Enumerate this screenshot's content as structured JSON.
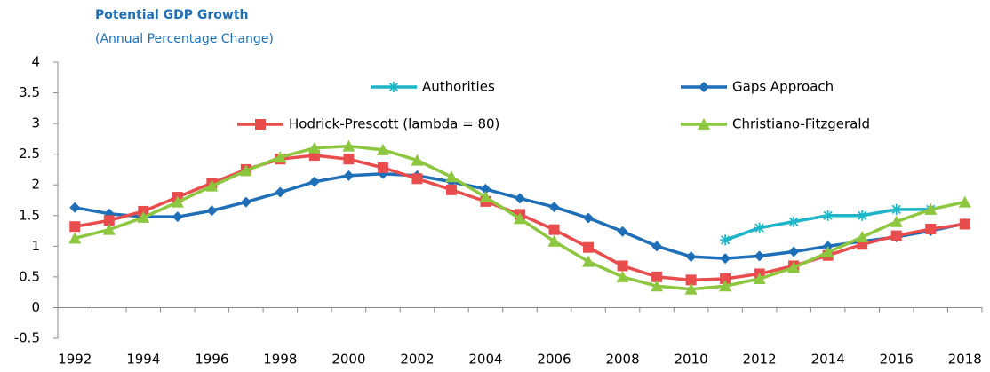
{
  "chart_data": {
    "type": "line",
    "title": "Potential GDP Growth",
    "subtitle": "(Annual Percentage Change)",
    "categories": [
      1992,
      null,
      1994,
      null,
      1996,
      null,
      1998,
      null,
      2000,
      null,
      2002,
      null,
      2004,
      null,
      2006,
      null,
      2008,
      null,
      2010,
      null,
      2012,
      null,
      2014,
      null,
      2016,
      null,
      2018
    ],
    "ylim": [
      -0.5,
      4
    ],
    "yticks": [
      -0.5,
      0,
      0.5,
      1,
      1.5,
      2,
      2.5,
      3,
      3.5,
      4
    ],
    "series": [
      {
        "name": "Authorities",
        "color": "#1fb5c8",
        "marker": "star",
        "values": [
          null,
          null,
          null,
          null,
          null,
          null,
          null,
          null,
          null,
          null,
          null,
          null,
          null,
          null,
          null,
          null,
          null,
          null,
          null,
          1.1,
          1.3,
          1.4,
          1.5,
          1.5,
          1.6,
          1.6,
          null
        ]
      },
      {
        "name": "Gaps Approach",
        "color": "#1f6fb8",
        "marker": "diamond",
        "values": [
          1.63,
          1.53,
          1.48,
          1.48,
          1.58,
          1.72,
          1.88,
          2.05,
          2.15,
          2.18,
          2.15,
          2.05,
          1.93,
          1.78,
          1.64,
          1.46,
          1.24,
          1.0,
          0.83,
          0.8,
          0.84,
          0.91,
          1.0,
          1.08,
          1.15,
          1.25,
          1.37
        ]
      },
      {
        "name": "Hodrick-Prescott (lambda = 80)",
        "color": "#e84c4c",
        "marker": "square",
        "values": [
          1.32,
          1.42,
          1.57,
          1.8,
          2.03,
          2.25,
          2.42,
          2.48,
          2.42,
          2.28,
          2.1,
          1.92,
          1.73,
          1.52,
          1.27,
          0.98,
          0.68,
          0.5,
          0.45,
          0.47,
          0.55,
          0.68,
          0.85,
          1.03,
          1.17,
          1.28,
          1.36
        ]
      },
      {
        "name": "Christiano-Fitzgerald",
        "color": "#8dc63f",
        "marker": "triangle",
        "values": [
          1.13,
          1.27,
          1.47,
          1.72,
          1.98,
          2.23,
          2.45,
          2.6,
          2.63,
          2.57,
          2.4,
          2.13,
          1.8,
          1.45,
          1.08,
          0.75,
          0.5,
          0.35,
          0.3,
          0.35,
          0.47,
          0.65,
          0.9,
          1.15,
          1.4,
          1.6,
          1.72
        ]
      }
    ]
  }
}
